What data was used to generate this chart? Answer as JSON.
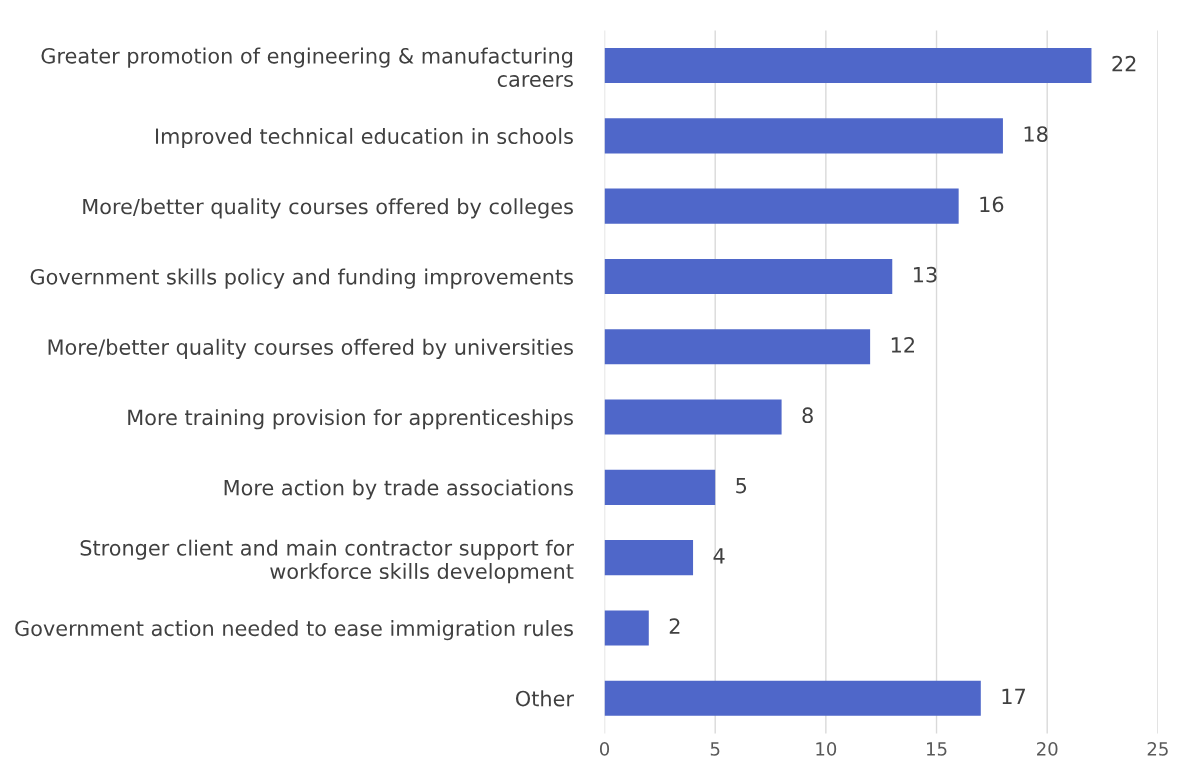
{
  "chart_data": {
    "type": "bar",
    "orientation": "horizontal",
    "categories": [
      "Greater promotion of engineering & manufacturing careers",
      "Improved technical education in schools",
      "More/better quality courses offered by colleges",
      "Government skills policy and funding improvements",
      "More/better quality courses offered by universities",
      "More training provision for apprenticeships",
      "More action by trade associations",
      "Stronger client and main contractor support for workforce skills development",
      "Government action needed to ease immigration rules",
      "Other"
    ],
    "values": [
      22,
      18,
      16,
      13,
      12,
      8,
      5,
      4,
      2,
      17
    ],
    "color": "#4f67c9",
    "xlim": [
      0,
      25
    ],
    "xticks": [
      0,
      5,
      10,
      15,
      20,
      25
    ],
    "grid": "x",
    "data_labels": true
  }
}
